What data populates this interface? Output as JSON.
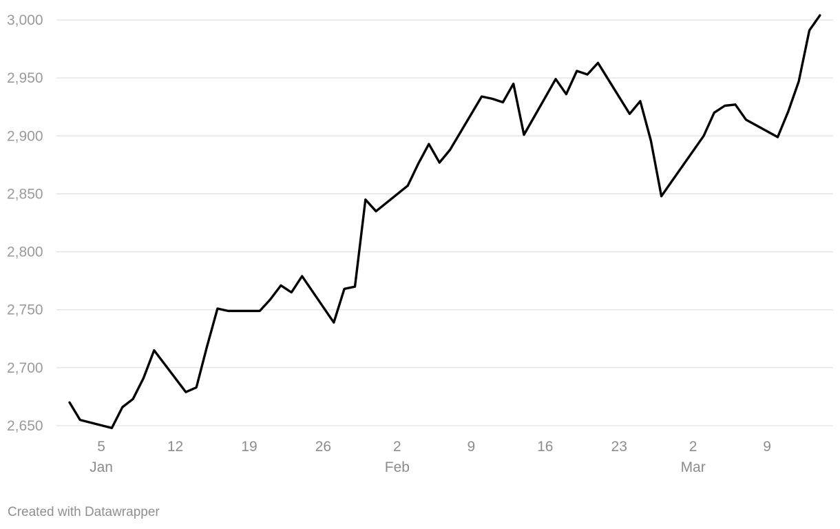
{
  "chart_data": {
    "type": "line",
    "title": "",
    "xlabel": "",
    "ylabel": "",
    "ylim": [
      2650,
      3000
    ],
    "y_ticks": [
      2650,
      2700,
      2750,
      2800,
      2850,
      2900,
      2950,
      3000
    ],
    "y_tick_labels": [
      "2,650",
      "2,700",
      "2,750",
      "2,800",
      "2,850",
      "2,900",
      "2,950",
      "3,000"
    ],
    "x_ticks": [
      {
        "date": "2018-01-05",
        "label": "5",
        "month": "Jan"
      },
      {
        "date": "2018-01-12",
        "label": "12",
        "month": ""
      },
      {
        "date": "2018-01-19",
        "label": "19",
        "month": ""
      },
      {
        "date": "2018-01-26",
        "label": "26",
        "month": ""
      },
      {
        "date": "2018-02-02",
        "label": "2",
        "month": "Feb"
      },
      {
        "date": "2018-02-09",
        "label": "9",
        "month": ""
      },
      {
        "date": "2018-02-16",
        "label": "16",
        "month": ""
      },
      {
        "date": "2018-02-23",
        "label": "23",
        "month": ""
      },
      {
        "date": "2018-03-02",
        "label": "2",
        "month": "Mar"
      },
      {
        "date": "2018-03-09",
        "label": "9",
        "month": ""
      }
    ],
    "grid": true,
    "legend": "none",
    "line_color": "#000000",
    "series": [
      {
        "x": [
          "2018-01-02",
          "2018-01-03",
          "2018-01-06",
          "2018-01-07",
          "2018-01-08",
          "2018-01-09",
          "2018-01-10",
          "2018-01-13",
          "2018-01-14",
          "2018-01-15",
          "2018-01-16",
          "2018-01-17",
          "2018-01-20",
          "2018-01-21",
          "2018-01-22",
          "2018-01-23",
          "2018-01-24",
          "2018-01-27",
          "2018-01-28",
          "2018-01-29",
          "2018-01-30",
          "2018-01-31",
          "2018-02-03",
          "2018-02-04",
          "2018-02-05",
          "2018-02-06",
          "2018-02-07",
          "2018-02-10",
          "2018-02-11",
          "2018-02-12",
          "2018-02-13",
          "2018-02-14",
          "2018-02-17",
          "2018-02-18",
          "2018-02-19",
          "2018-02-20",
          "2018-02-21",
          "2018-02-24",
          "2018-02-25",
          "2018-02-26",
          "2018-02-27",
          "2018-02-28",
          "2018-03-03",
          "2018-03-04",
          "2018-03-05",
          "2018-03-06",
          "2018-03-07",
          "2018-03-10",
          "2018-03-11",
          "2018-03-12",
          "2018-03-13",
          "2018-03-14"
        ],
        "values": [
          2670,
          2655,
          2648,
          2666,
          2673,
          2691,
          2715,
          2679,
          2683,
          2718,
          2751,
          2749,
          2749,
          2759,
          2771,
          2765,
          2779,
          2739,
          2768,
          2770,
          2845,
          2835,
          2857,
          2876,
          2893,
          2877,
          2888,
          2934,
          2932,
          2929,
          2945,
          2901,
          2949,
          2936,
          2956,
          2953,
          2963,
          2919,
          2930,
          2896,
          2848,
          2861,
          2900,
          2920,
          2926,
          2927,
          2914,
          2899,
          2921,
          2947,
          2991,
          3004
        ]
      }
    ]
  },
  "footer": {
    "credit": "Created with Datawrapper"
  }
}
